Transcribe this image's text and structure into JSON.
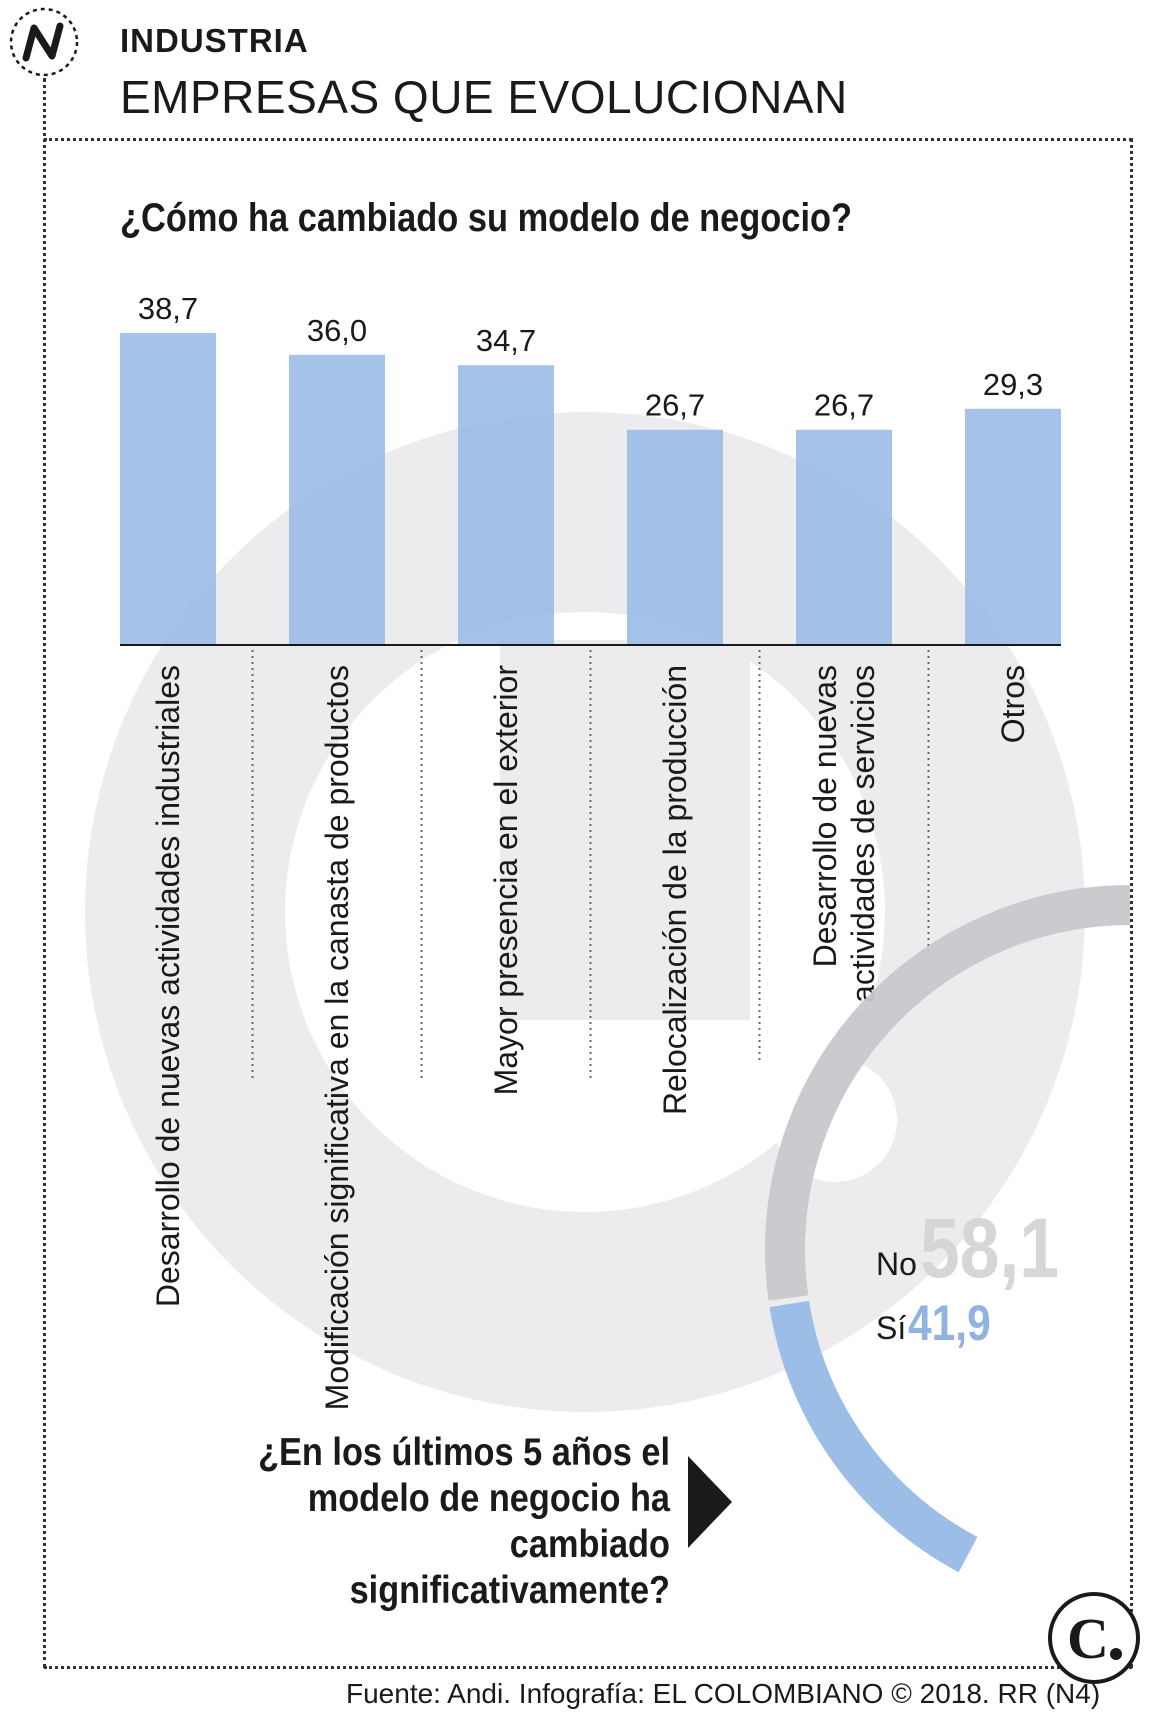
{
  "header": {
    "section": "INDUSTRIA",
    "title": "EMPRESAS QUE EVOLUCIONAN"
  },
  "icons": {
    "section_logo": "n-logo-icon",
    "brand_logo": "el-colombiano-logo-icon",
    "arrow": "arrow-right-icon"
  },
  "colors": {
    "bar": "#9bbde6",
    "ring_no": "#c8c8cc",
    "ring_si": "#9bbde6",
    "watermark": "#ececee"
  },
  "question1": "¿Cómo ha cambiado su modelo de negocio?",
  "question2_lines": [
    "¿En los últimos 5 años el",
    "modelo de negocio ha cambiado",
    "significativamente?"
  ],
  "pie": {
    "no_label": "No",
    "no_value": "58,1",
    "si_label": "Sí",
    "si_value": "41,9"
  },
  "chart_data": [
    {
      "type": "bar",
      "title": "¿Cómo ha cambiado su modelo de negocio?",
      "categories": [
        [
          "Desarrollo de nuevas actividades industriales"
        ],
        [
          "Modificación significativa en la canasta de productos"
        ],
        [
          "Mayor presencia en el exterior"
        ],
        [
          "Relocalización de la producción"
        ],
        [
          "Desarrollo de nuevas",
          "actividades de servicios"
        ],
        [
          "Otros"
        ]
      ],
      "values": [
        38.7,
        36.0,
        34.7,
        26.7,
        26.7,
        29.3
      ],
      "value_labels": [
        "38,7",
        "36,0",
        "34,7",
        "26,7",
        "26,7",
        "29,3"
      ],
      "ylim": [
        0,
        38.7
      ],
      "grid": false
    },
    {
      "type": "pie",
      "title": "¿En los últimos 5 años el modelo de negocio ha cambiado significativamente?",
      "categories": [
        "No",
        "Sí"
      ],
      "values": [
        58.1,
        41.9
      ]
    }
  ],
  "footer": {
    "source": "Fuente: Andi. Infografía: EL COLOMBIANO © 2018. RR (N4)"
  }
}
